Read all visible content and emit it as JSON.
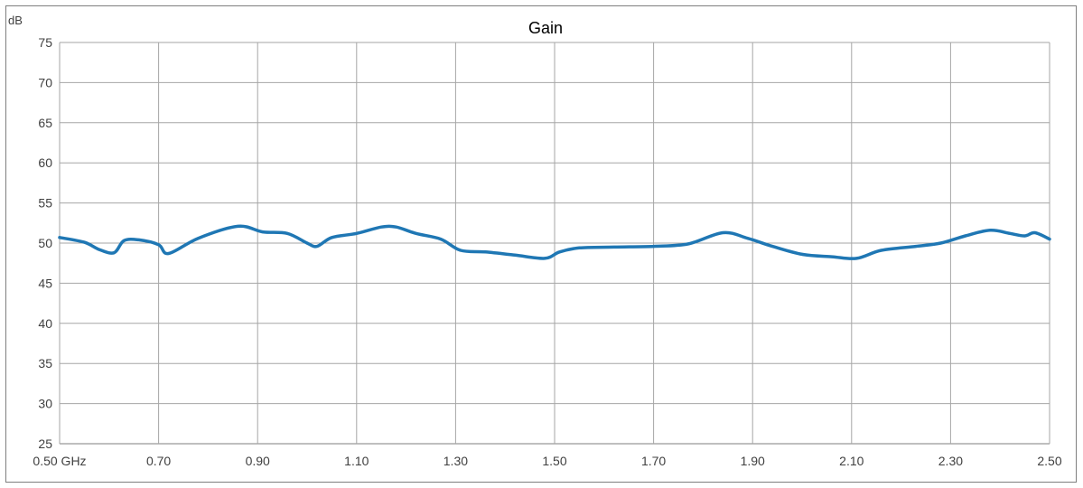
{
  "chart_data": {
    "type": "line",
    "title": "Gain",
    "ylabel": "dB",
    "xlabel": "",
    "ylim": [
      25,
      75
    ],
    "xlim": [
      0.5,
      2.5
    ],
    "yticks": [
      25,
      30,
      35,
      40,
      45,
      50,
      55,
      60,
      65,
      70,
      75
    ],
    "yticklabels": [
      "25",
      "30",
      "35",
      "40",
      "45",
      "50",
      "55",
      "60",
      "65",
      "70",
      "75"
    ],
    "xticks": [
      0.5,
      0.7,
      0.9,
      1.1,
      1.3,
      1.5,
      1.7,
      1.9,
      2.1,
      2.3,
      2.5
    ],
    "xticklabels": [
      "0.50 GHz",
      "0.70",
      "0.90",
      "1.10",
      "1.30",
      "1.50",
      "1.70",
      "1.90",
      "2.10",
      "2.30",
      "2.50"
    ],
    "grid": true,
    "series": [
      {
        "color": "#1f77b4",
        "x": [
          0.5,
          0.55,
          0.58,
          0.61,
          0.63,
          0.66,
          0.7,
          0.72,
          0.78,
          0.86,
          0.91,
          0.96,
          1.0,
          1.02,
          1.05,
          1.1,
          1.15,
          1.18,
          1.22,
          1.27,
          1.31,
          1.36,
          1.42,
          1.48,
          1.51,
          1.55,
          1.62,
          1.7,
          1.77,
          1.84,
          1.89,
          1.94,
          2.0,
          2.06,
          2.11,
          2.16,
          2.23,
          2.28,
          2.33,
          2.38,
          2.42,
          2.45,
          2.47,
          2.5
        ],
        "y": [
          50.7,
          50.1,
          49.2,
          48.8,
          50.3,
          50.4,
          49.8,
          48.7,
          50.6,
          52.1,
          51.4,
          51.2,
          50.0,
          49.6,
          50.7,
          51.2,
          52.0,
          52.0,
          51.2,
          50.5,
          49.1,
          48.9,
          48.5,
          48.1,
          48.9,
          49.4,
          49.5,
          49.6,
          49.9,
          51.3,
          50.6,
          49.6,
          48.6,
          48.3,
          48.1,
          49.1,
          49.6,
          50.0,
          50.9,
          51.6,
          51.2,
          50.9,
          51.3,
          50.5
        ]
      }
    ]
  }
}
